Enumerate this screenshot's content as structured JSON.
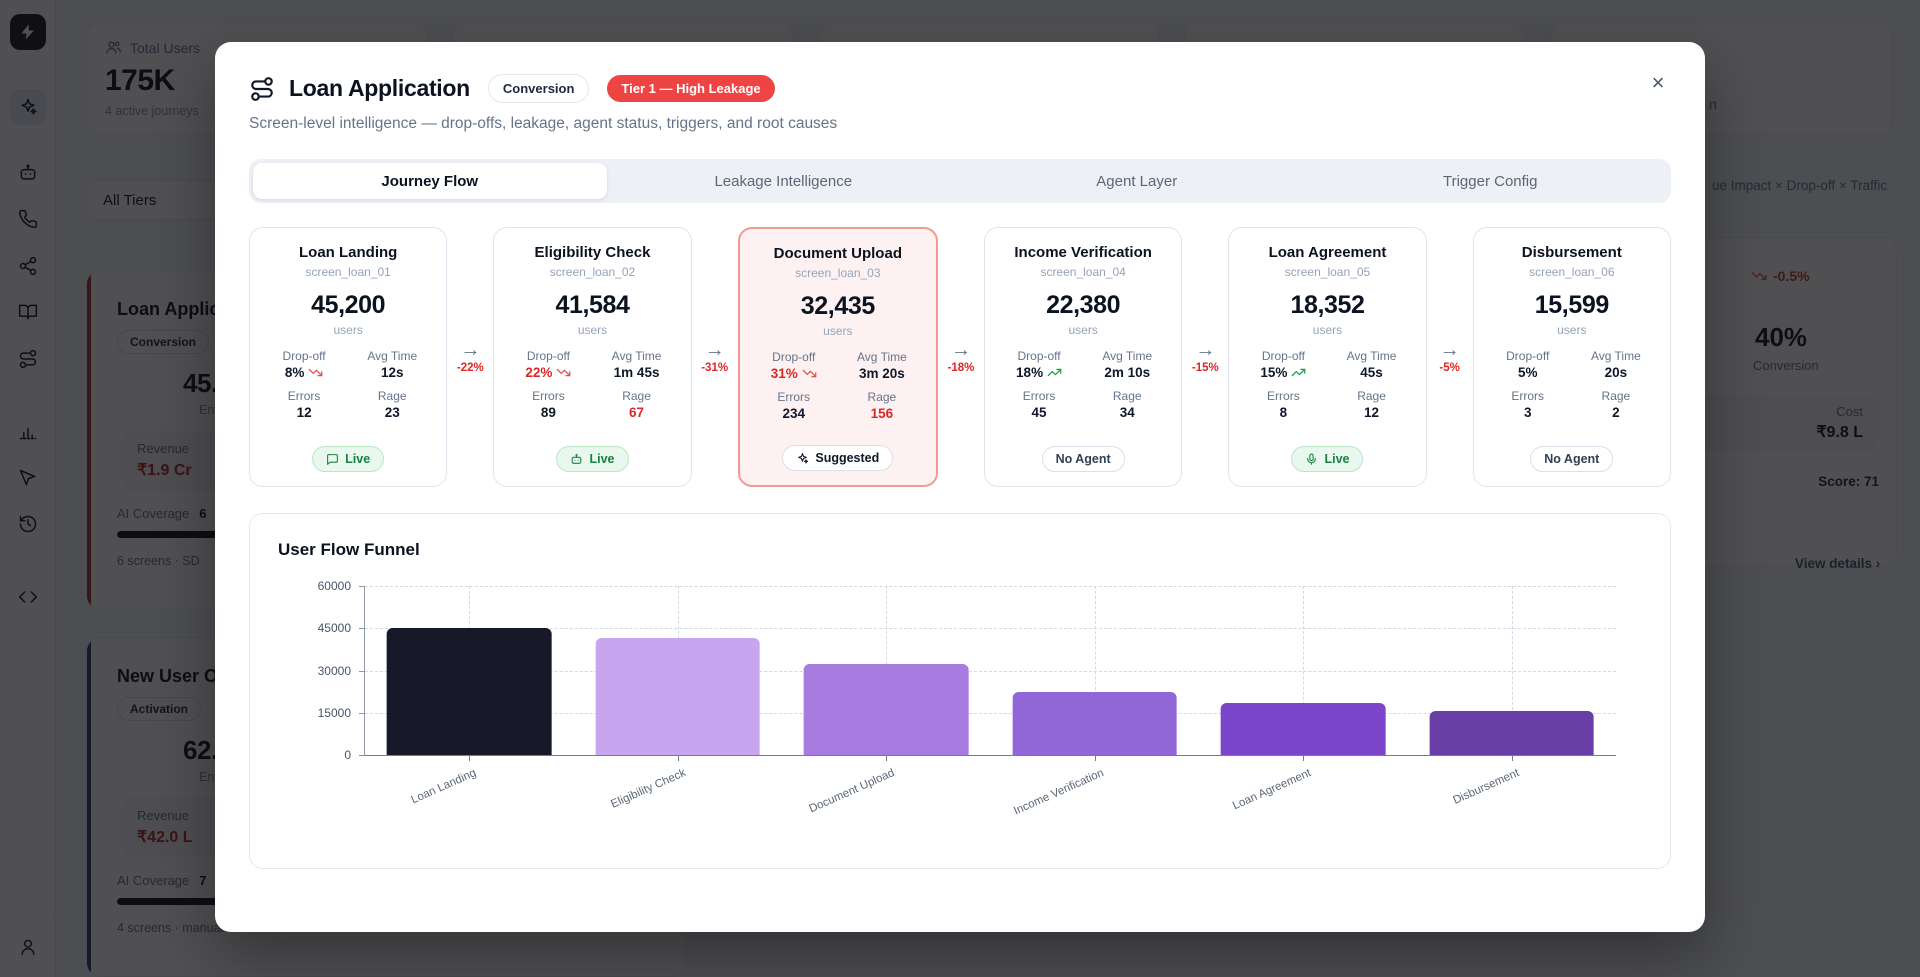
{
  "sidebar": {
    "logo_icon": "zap",
    "nav_icons": [
      "sparkles",
      "bot",
      "phone",
      "share-nodes",
      "book-open",
      "route",
      "bar-chart",
      "mouse-pointer",
      "history",
      "code"
    ],
    "active_icon": "sparkles",
    "footer_icon": "user"
  },
  "background": {
    "total_users": {
      "icon": "users",
      "label": "Total Users",
      "value": "175K",
      "caption": "4 active journeys"
    },
    "filter": {
      "label": "All Tiers"
    },
    "top_right_fragment": "n",
    "section_fragment": "ue Impact × Drop-off × Traffic",
    "journey_cards": [
      {
        "title": "Loan Applic",
        "tag": "Conversion",
        "metric": "45.2",
        "metric_caption": "Enter",
        "revenue_label": "Revenue",
        "revenue_value": "₹1.9 Cr",
        "coverage_label": "AI Coverage",
        "coverage_value": "6",
        "footer": "6 screens · SD",
        "link": "",
        "accent": "#9e3832"
      },
      {
        "title": "New User O",
        "tag": "Activation",
        "metric": "62.3",
        "metric_caption": "Enter",
        "revenue_label": "Revenue",
        "revenue_value": "₹42.0 L",
        "coverage_label": "AI Coverage",
        "coverage_value": "7",
        "footer": "4 screens · manual",
        "link": "View details  ›",
        "accent": "#2c3e74"
      }
    ],
    "right_card": {
      "trend_icon": "trend-down",
      "trend_value": "-0.5%",
      "metric": "40%",
      "metric_caption": "Conversion",
      "cost_label": "Cost",
      "cost_value": "₹9.8 L",
      "score": "Score: 71",
      "link": "View details  ›"
    }
  },
  "modal": {
    "icon": "route",
    "title": "Loan Application",
    "category_badge": "Conversion",
    "tier_badge": "Tier 1 — High Leakage",
    "subtitle": "Screen-level intelligence — drop-offs, leakage, agent status, triggers, and root causes",
    "close_icon": "close",
    "tabs": [
      {
        "label": "Journey Flow",
        "active": true
      },
      {
        "label": "Leakage Intelligence",
        "active": false
      },
      {
        "label": "Agent Layer",
        "active": false
      },
      {
        "label": "Trigger Config",
        "active": false
      }
    ],
    "stat_labels": {
      "dropoff": "Drop-off",
      "avg_time": "Avg Time",
      "errors": "Errors",
      "rage": "Rage",
      "users": "users"
    },
    "screens": [
      {
        "name": "Loan Landing",
        "id": "screen_loan_01",
        "users": "45,200",
        "dropoff": "8%",
        "dropoff_trend": "down",
        "dropoff_danger": false,
        "avg_time": "12s",
        "errors": "12",
        "rage": "23",
        "rage_danger": false,
        "highlight": false,
        "badge": {
          "style": "live",
          "icon": "message-square",
          "label": "Live"
        }
      },
      {
        "name": "Eligibility Check",
        "id": "screen_loan_02",
        "users": "41,584",
        "dropoff": "22%",
        "dropoff_trend": "down",
        "dropoff_danger": true,
        "avg_time": "1m 45s",
        "errors": "89",
        "rage": "67",
        "rage_danger": true,
        "highlight": false,
        "badge": {
          "style": "live",
          "icon": "bot",
          "label": "Live"
        }
      },
      {
        "name": "Document Upload",
        "id": "screen_loan_03",
        "users": "32,435",
        "dropoff": "31%",
        "dropoff_trend": "down",
        "dropoff_danger": true,
        "avg_time": "3m 20s",
        "errors": "234",
        "rage": "156",
        "rage_danger": true,
        "highlight": true,
        "badge": {
          "style": "suggested",
          "icon": "sparkles",
          "label": "Suggested"
        }
      },
      {
        "name": "Income Verification",
        "id": "screen_loan_04",
        "users": "22,380",
        "dropoff": "18%",
        "dropoff_trend": "up",
        "dropoff_danger": false,
        "avg_time": "2m 10s",
        "errors": "45",
        "rage": "34",
        "rage_danger": false,
        "highlight": false,
        "badge": {
          "style": "neutral",
          "icon": null,
          "label": "No Agent"
        }
      },
      {
        "name": "Loan Agreement",
        "id": "screen_loan_05",
        "users": "18,352",
        "dropoff": "15%",
        "dropoff_trend": "up",
        "dropoff_danger": false,
        "avg_time": "45s",
        "errors": "8",
        "rage": "12",
        "rage_danger": false,
        "highlight": false,
        "badge": {
          "style": "live",
          "icon": "mic",
          "label": "Live"
        }
      },
      {
        "name": "Disbursement",
        "id": "screen_loan_06",
        "users": "15,599",
        "dropoff": "5%",
        "dropoff_trend": null,
        "dropoff_danger": false,
        "avg_time": "20s",
        "errors": "3",
        "rage": "2",
        "rage_danger": false,
        "highlight": false,
        "badge": {
          "style": "neutral",
          "icon": null,
          "label": "No Agent"
        }
      }
    ],
    "connectors": [
      "-22%",
      "-31%",
      "-18%",
      "-15%",
      "-5%"
    ],
    "funnel": {
      "title": "User Flow Funnel"
    }
  },
  "chart_data": {
    "type": "bar",
    "title": "User Flow Funnel",
    "categories": [
      "Loan Landing",
      "Eligibility Check",
      "Document Upload",
      "Income Verification",
      "Loan Agreement",
      "Disbursement"
    ],
    "values": [
      45200,
      41584,
      32435,
      22380,
      18352,
      15599
    ],
    "bar_colors": [
      "#171929",
      "#c7a6ef",
      "#a87be1",
      "#9166d7",
      "#7b46ca",
      "#6a3fa5"
    ],
    "xlabel": "",
    "ylabel": "",
    "ylim": [
      0,
      60000
    ],
    "yticks": [
      0,
      15000,
      30000,
      45000,
      60000
    ],
    "grid": "dashed",
    "legend": false
  },
  "colors": {
    "tier_badge_bg": "#ef4444",
    "negative": "#dc2626",
    "positive": "#16a34a"
  }
}
